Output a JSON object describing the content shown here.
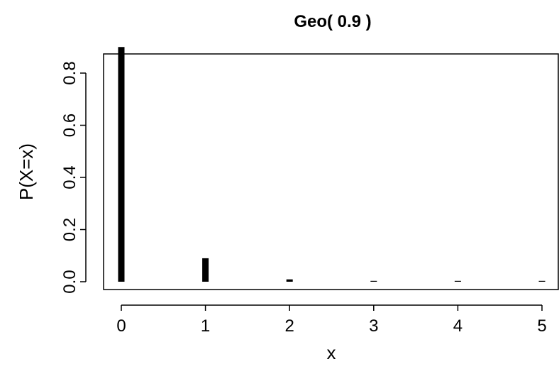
{
  "chart_data": {
    "type": "bar",
    "title": "Geo( 0.9 )",
    "xlabel": "x",
    "ylabel": "P(X=x)",
    "x": [
      0,
      1,
      2,
      3,
      4,
      5
    ],
    "values": [
      0.9,
      0.09,
      0.009,
      0.0009,
      9e-05,
      9e-06
    ],
    "xlim": [
      0,
      5
    ],
    "ylim": [
      0,
      0.9
    ],
    "xticks": [
      "0",
      "1",
      "2",
      "3",
      "4",
      "5"
    ],
    "yticks": [
      "0.0",
      "0.2",
      "0.4",
      "0.6",
      "0.8"
    ],
    "grid": false,
    "bar_color": "#000000"
  }
}
